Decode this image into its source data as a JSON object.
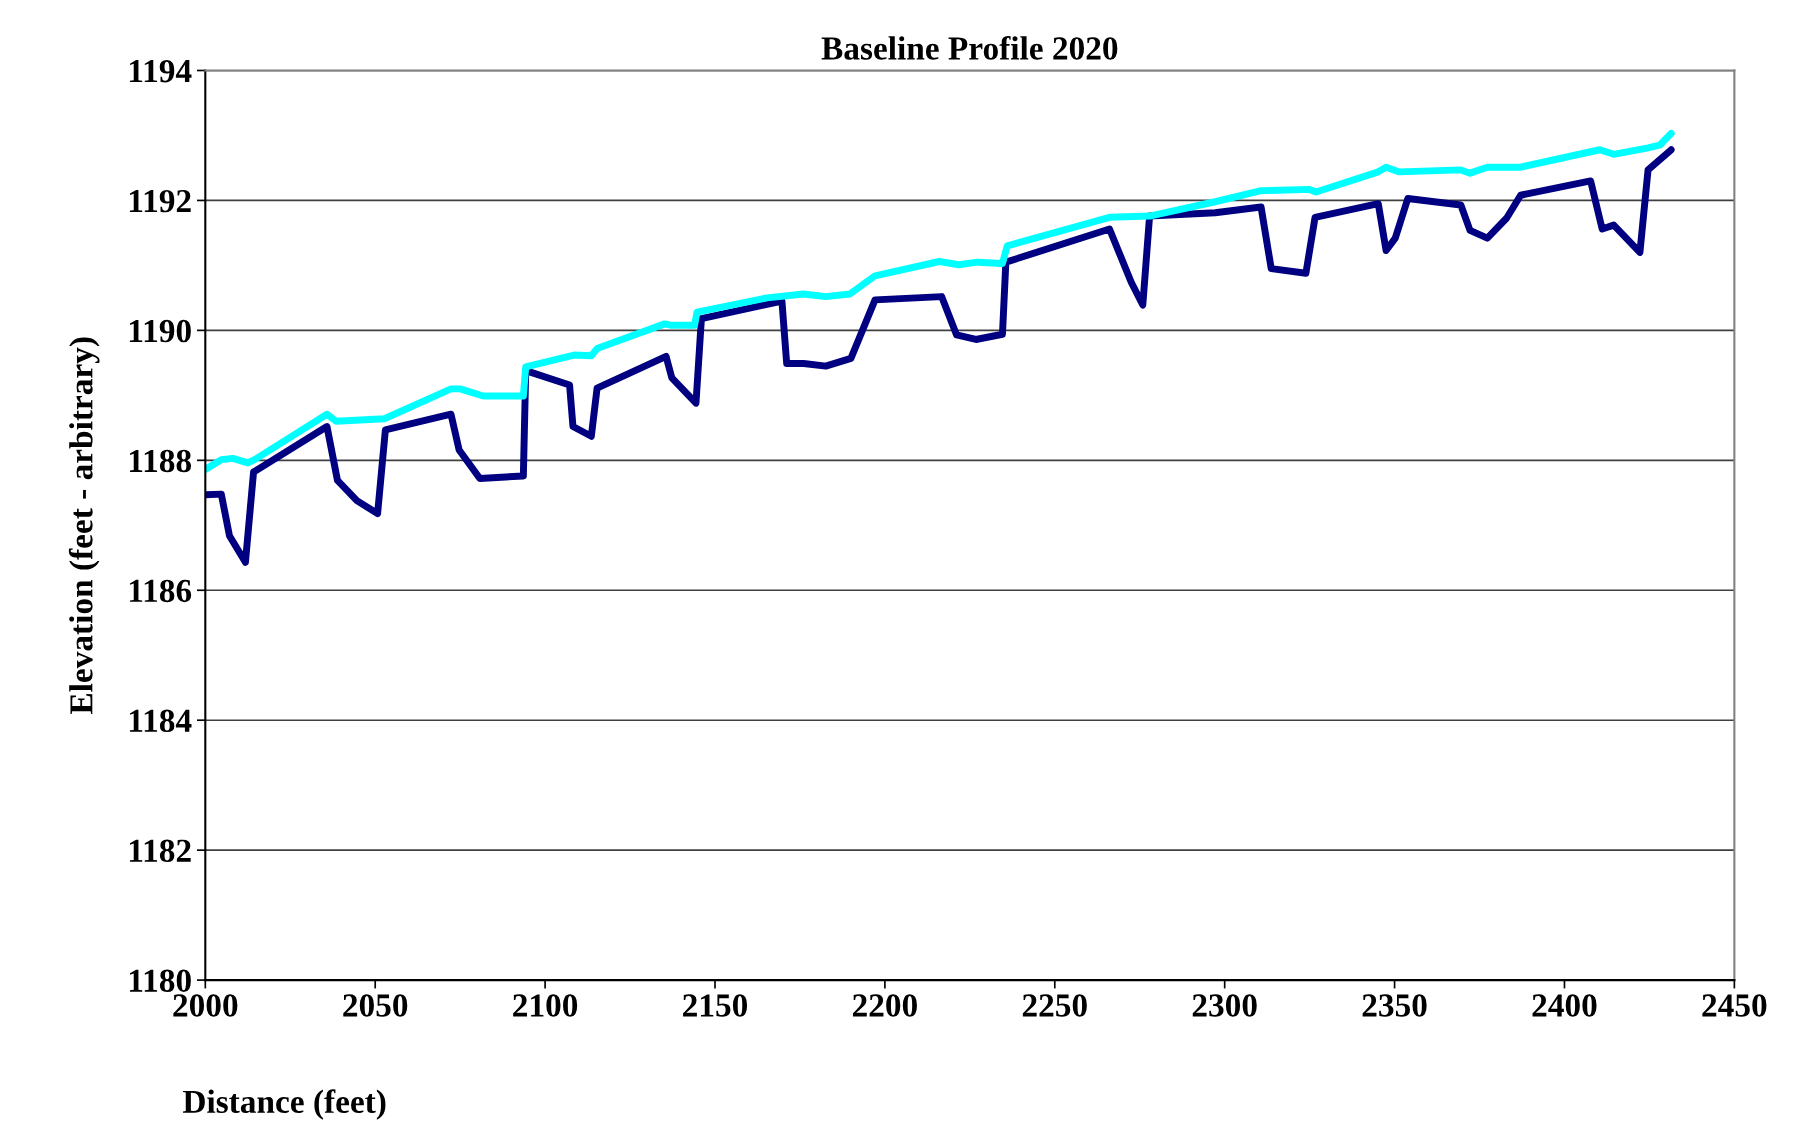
{
  "chart_data": {
    "type": "line",
    "title": "Baseline Profile 2020",
    "xlabel": "Distance (feet)",
    "ylabel": "Elevation (feet - arbitrary)",
    "xlim": [
      2000,
      2450
    ],
    "xticks": [
      2000,
      2050,
      2100,
      2150,
      2200,
      2250,
      2300,
      2350,
      2400,
      2450
    ],
    "ylim": [
      1180,
      1194
    ],
    "yticks": [
      1180,
      1182,
      1184,
      1186,
      1188,
      1190,
      1192,
      1194
    ],
    "grid": "y",
    "marker": "none",
    "line_style": "solid",
    "series": [
      {
        "color": "#000080",
        "x": [
          2000,
          2004.7,
          2007.1,
          2011.8,
          2014.2,
          2035.8,
          2038.9,
          2044.6,
          2050.7,
          2053.0,
          2072.3,
          2074.7,
          2080.8,
          2093.6,
          2094.3,
          2107.2,
          2108.2,
          2113.6,
          2115.3,
          2135.6,
          2137.3,
          2144.4,
          2146.0,
          2169.7,
          2171.1,
          2176.1,
          2182.6,
          2190.0,
          2197.1,
          2216.7,
          2221.1,
          2226.8,
          2234.6,
          2235.6,
          2266.1,
          2272.5,
          2275.9,
          2277.9,
          2297.2,
          2310.7,
          2313.7,
          2323.9,
          2326.6,
          2345.2,
          2347.5,
          2350.2,
          2353.9,
          2369.5,
          2372.2,
          2377.3,
          2383.0,
          2387.1,
          2407.7,
          2411.1,
          2414.5,
          2422.2,
          2424.6,
          2431.4
        ],
        "values": [
          1187.47,
          1187.48,
          1186.84,
          1186.43,
          1187.82,
          1188.52,
          1187.69,
          1187.38,
          1187.18,
          1188.47,
          1188.71,
          1188.16,
          1187.72,
          1187.76,
          1189.38,
          1189.16,
          1188.52,
          1188.37,
          1189.11,
          1189.6,
          1189.27,
          1188.88,
          1190.18,
          1190.45,
          1189.49,
          1189.49,
          1189.45,
          1189.57,
          1190.47,
          1190.52,
          1189.93,
          1189.86,
          1189.94,
          1191.05,
          1191.56,
          1190.74,
          1190.39,
          1191.76,
          1191.81,
          1191.9,
          1190.95,
          1190.88,
          1191.74,
          1191.95,
          1191.23,
          1191.42,
          1192.03,
          1191.93,
          1191.54,
          1191.42,
          1191.73,
          1192.08,
          1192.3,
          1191.56,
          1191.62,
          1191.2,
          1192.47,
          1192.78
        ]
      },
      {
        "color": "#00ffff",
        "x": [
          2000,
          2004.7,
          2008.1,
          2012.5,
          2014.5,
          2035.8,
          2038.5,
          2052.7,
          2072.3,
          2075.0,
          2081.8,
          2093.6,
          2094.3,
          2108.5,
          2113.6,
          2115.3,
          2135.2,
          2136.9,
          2144.0,
          2144.7,
          2165.3,
          2176.1,
          2182.6,
          2189.7,
          2197.1,
          2216.0,
          2221.8,
          2227.2,
          2234.6,
          2236.0,
          2266.1,
          2277.9,
          2297.2,
          2310.7,
          2324.9,
          2326.9,
          2345.2,
          2347.5,
          2351.2,
          2369.5,
          2372.2,
          2377.3,
          2386.8,
          2410.4,
          2414.5,
          2424.6,
          2428.0,
          2431.4
        ],
        "values": [
          1187.86,
          1188.01,
          1188.03,
          1187.96,
          1188.01,
          1188.71,
          1188.6,
          1188.64,
          1189.1,
          1189.1,
          1188.99,
          1188.99,
          1189.44,
          1189.62,
          1189.61,
          1189.72,
          1190.1,
          1190.08,
          1190.08,
          1190.28,
          1190.5,
          1190.56,
          1190.52,
          1190.56,
          1190.84,
          1191.06,
          1191.01,
          1191.05,
          1191.03,
          1191.3,
          1191.74,
          1191.76,
          1191.98,
          1192.15,
          1192.17,
          1192.13,
          1192.44,
          1192.51,
          1192.44,
          1192.47,
          1192.42,
          1192.51,
          1192.51,
          1192.78,
          1192.71,
          1192.81,
          1192.85,
          1193.03
        ]
      }
    ]
  }
}
